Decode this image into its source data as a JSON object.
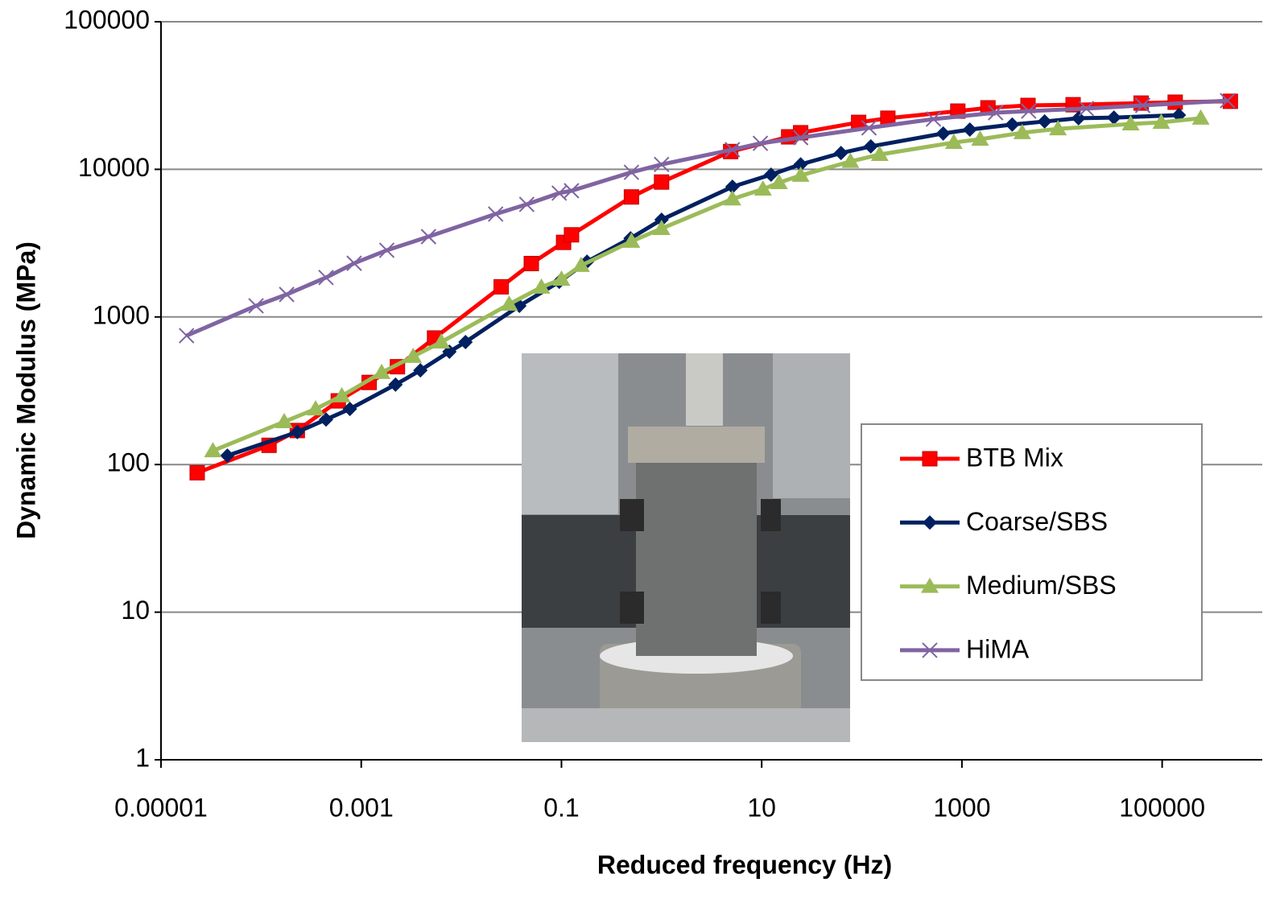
{
  "chart_data": {
    "type": "line",
    "xlabel": "Reduced frequency (Hz)",
    "ylabel": "Dynamic Modulus (MPa)",
    "xscale": "log",
    "yscale": "log",
    "xlim": [
      1e-05,
      1000000
    ],
    "ylim": [
      1,
      100000
    ],
    "xticks": [
      1e-05,
      0.001,
      0.1,
      10,
      1000,
      100000
    ],
    "yticks": [
      1,
      10,
      100,
      1000,
      10000,
      100000
    ],
    "grid": true,
    "legend": "center right",
    "series": [
      {
        "name": "BTB Mix",
        "color": "#ff0000",
        "marker": "square",
        "x": [
          2.3e-05,
          0.00012,
          0.00023,
          0.00059,
          0.0012,
          0.0023,
          0.0054,
          0.025,
          0.05,
          0.105,
          0.126,
          0.5,
          1,
          4.9,
          18.6,
          24.5,
          93,
          182,
          910,
          1820,
          4570,
          12900,
          61700,
          135000,
          480000
        ],
        "values": [
          88,
          135,
          170,
          270,
          360,
          460,
          720,
          1600,
          2300,
          3200,
          3600,
          6500,
          8200,
          13200,
          16600,
          17700,
          20800,
          22200,
          24800,
          26100,
          27100,
          27400,
          28100,
          28500,
          28900
        ]
      },
      {
        "name": "Coarse/SBS",
        "color": "#002060",
        "marker": "diamond",
        "x": [
          4.6e-05,
          0.00023,
          0.000445,
          0.00077,
          0.0022,
          0.0039,
          0.0076,
          0.011,
          0.038,
          0.095,
          0.18,
          0.49,
          1,
          5.1,
          12.4,
          24.5,
          62,
          123,
          650,
          1200,
          3180,
          6700,
          14600,
          33000,
          147000
        ],
        "values": [
          115,
          166,
          202,
          238,
          348,
          435,
          581,
          676,
          1190,
          1730,
          2370,
          3410,
          4560,
          7620,
          9200,
          10800,
          12900,
          14300,
          17500,
          18600,
          20100,
          21100,
          22200,
          22400,
          23300
        ]
      },
      {
        "name": "Medium/SBS",
        "color": "#9bbb59",
        "marker": "triangle",
        "x": [
          3.3e-05,
          0.00017,
          0.00035,
          0.00064,
          0.0016,
          0.0033,
          0.0063,
          0.03,
          0.063,
          0.1,
          0.157,
          0.5,
          1,
          5.1,
          10.3,
          14.9,
          24.5,
          77,
          151,
          830,
          1520,
          4000,
          9100,
          48500,
          98000,
          243000
        ],
        "values": [
          124,
          195,
          238,
          292,
          420,
          540,
          676,
          1220,
          1590,
          1800,
          2230,
          3250,
          3970,
          6300,
          7340,
          8120,
          9100,
          11300,
          12600,
          15200,
          16000,
          17700,
          18800,
          20300,
          20800,
          22200
        ]
      },
      {
        "name": "HiMA",
        "color": "#8064a2",
        "marker": "x",
        "x": [
          1.8e-05,
          8.9e-05,
          0.00018,
          0.000445,
          0.00085,
          0.0018,
          0.0047,
          0.022,
          0.045,
          0.095,
          0.126,
          0.5,
          1,
          5.1,
          9.7,
          24.5,
          118,
          520,
          2170,
          4640,
          17500,
          64000,
          450000
        ],
        "values": [
          747,
          1190,
          1420,
          1850,
          2310,
          2830,
          3500,
          4980,
          5790,
          6900,
          7160,
          9550,
          10800,
          13600,
          15000,
          16400,
          19100,
          21900,
          24200,
          24800,
          25800,
          27100,
          29200
        ]
      }
    ]
  }
}
